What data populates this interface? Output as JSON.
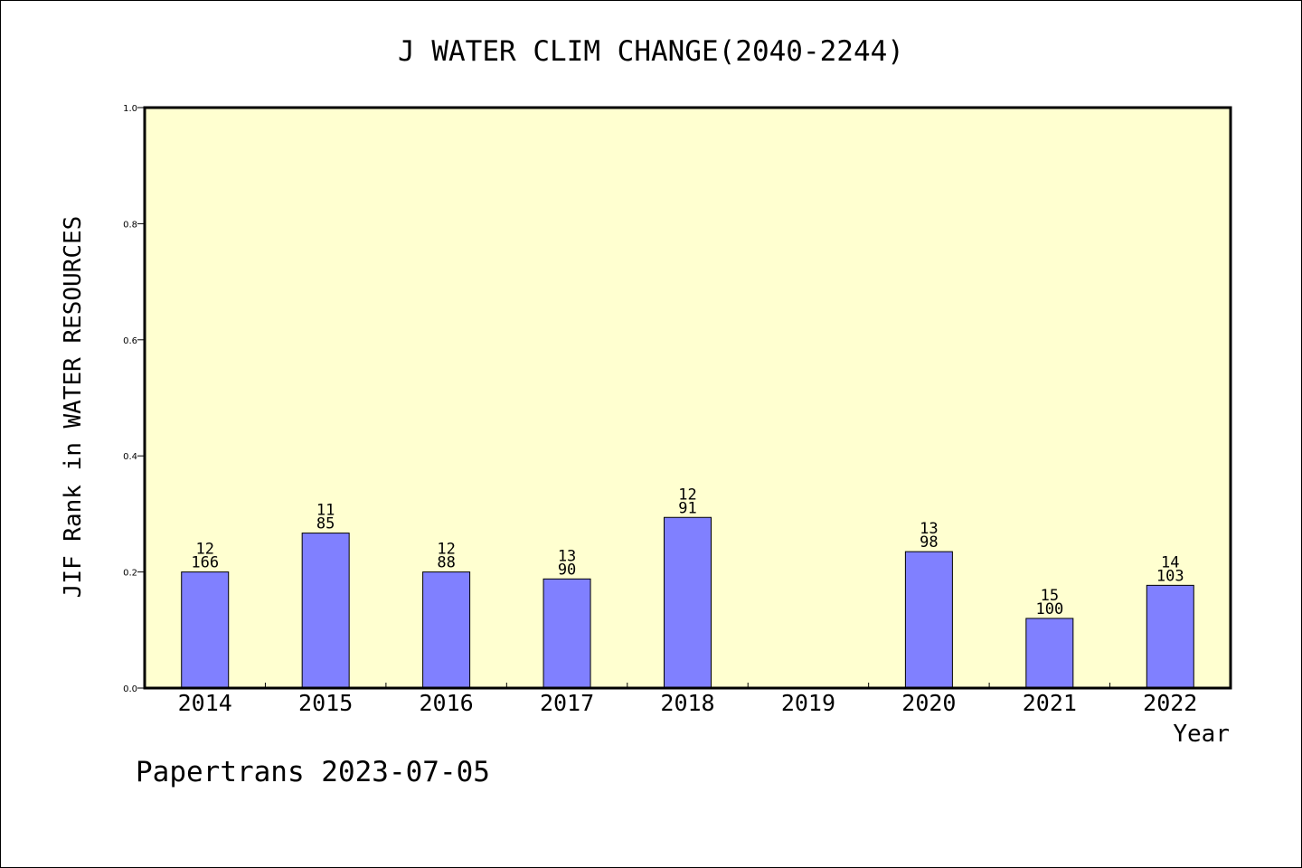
{
  "chart_data": {
    "type": "bar",
    "title": "J WATER CLIM CHANGE(2040-2244)",
    "xlabel": "Year",
    "ylabel": "JIF Rank in WATER RESOURCES",
    "ylim": [
      0.0,
      1.0
    ],
    "yticks": [
      "0.0",
      "0.2",
      "0.4",
      "0.6",
      "0.8",
      "1.0"
    ],
    "categories": [
      "2014",
      "2015",
      "2016",
      "2017",
      "2018",
      "2019",
      "2020",
      "2021",
      "2022"
    ],
    "values": [
      0.2,
      0.267,
      0.2,
      0.188,
      0.294,
      null,
      0.235,
      0.12,
      0.177
    ],
    "rank_labels": [
      "12",
      "11",
      "12",
      "13",
      "12",
      "",
      "13",
      "15",
      "14"
    ],
    "total_labels": [
      "166",
      "85",
      "88",
      "90",
      "91",
      "",
      "98",
      "100",
      "103"
    ],
    "grid": false,
    "colors": {
      "bar_fill": "#8080ff",
      "plot_background": "#ffffd0",
      "axis": "#000000"
    }
  },
  "footer": {
    "credit": "Papertrans 2023-07-05"
  }
}
